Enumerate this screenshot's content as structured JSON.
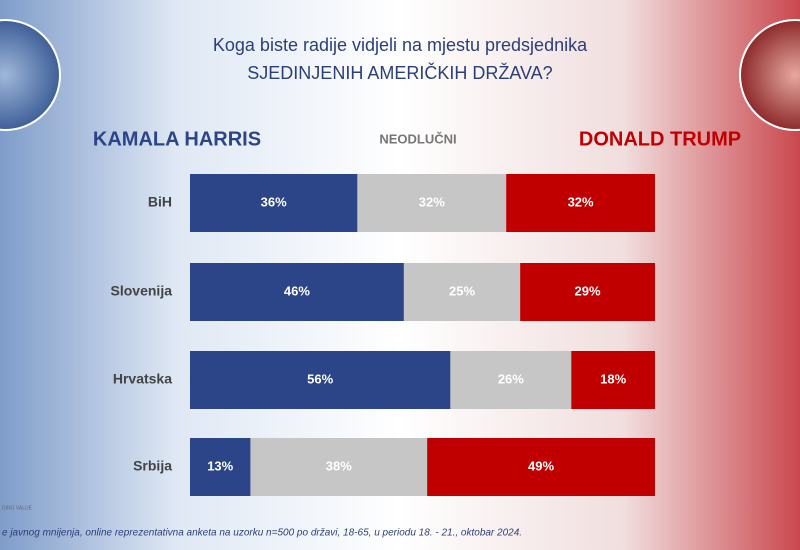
{
  "chart_data": {
    "type": "stacked-bar-horizontal",
    "title": "Koga biste radije vidjeli na mjestu predsjednika",
    "subtitle": "SJEDINJENIH AMERIČKIH DRŽAVA?",
    "categories": [
      "BiH",
      "Slovenija",
      "Hrvatska",
      "Srbija"
    ],
    "series": [
      {
        "name": "KAMALA HARRIS",
        "color": "#2b4588",
        "values": [
          36,
          46,
          56,
          13
        ],
        "value_labels": [
          "36%",
          "46%",
          "56%",
          "13%"
        ]
      },
      {
        "name": "NEODLUČNI",
        "color": "#c6c6c6",
        "values": [
          32,
          25,
          26,
          38
        ],
        "value_labels": [
          "32%",
          "25%",
          "26%",
          "38%"
        ]
      },
      {
        "name": "DONALD TRUMP",
        "color": "#c00000",
        "values": [
          32,
          29,
          18,
          49
        ],
        "value_labels": [
          "32%",
          "29%",
          "18%",
          "49%"
        ]
      }
    ],
    "xlim": [
      0,
      100
    ],
    "source": "e javnog mnijenja, online reprezentativna anketa na uzorku n=500 po državi, 18-65, u periodu 18. - 21., oktobar 2024.",
    "logo_text": "DING VALUE"
  }
}
